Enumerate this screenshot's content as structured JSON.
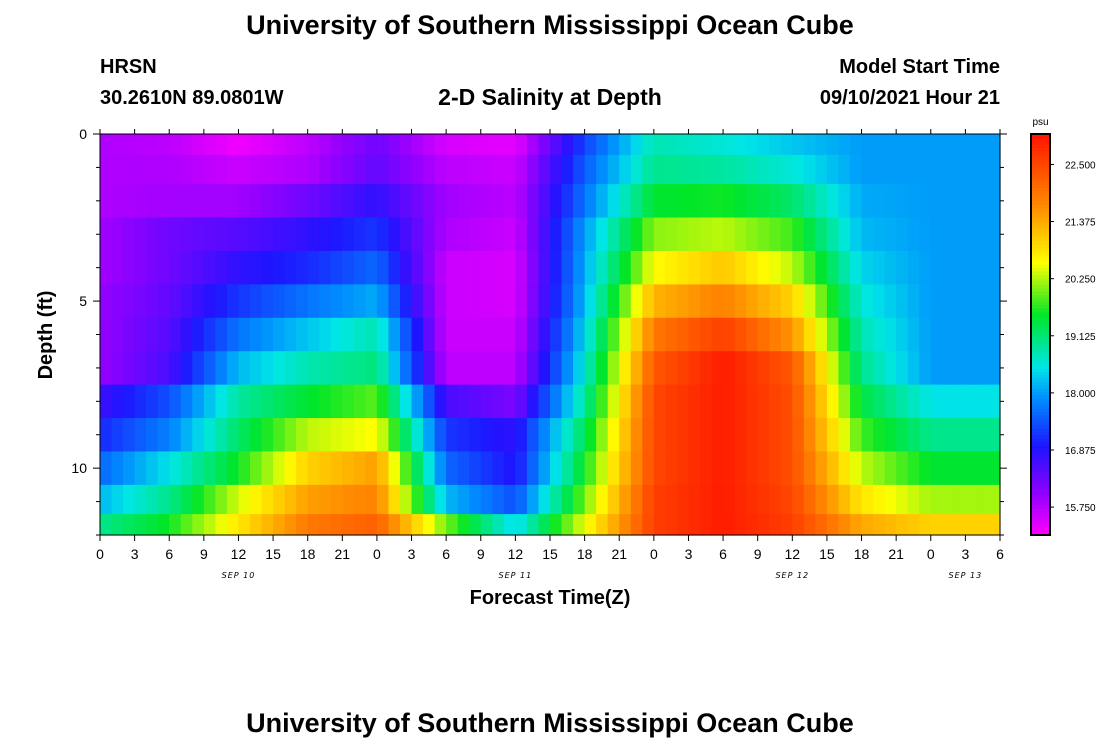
{
  "header": {
    "title_top": "University of Southern Mississippi Ocean Cube",
    "title_bottom": "University of Southern Mississippi Ocean Cube",
    "station": "HRSN",
    "coords": "30.2610N  89.0801W",
    "model_label": "Model Start Time",
    "model_time": "09/10/2021 Hour 21",
    "subtitle": "2-D Salinity at Depth"
  },
  "chart_data": {
    "type": "heatmap",
    "title": "2-D Salinity at Depth",
    "xlabel": "Forecast Time(Z)",
    "ylabel": "Depth (ft)",
    "x_tick_labels": [
      "0",
      "3",
      "6",
      "9",
      "12",
      "15",
      "18",
      "21",
      "0",
      "3",
      "6",
      "9",
      "12",
      "15",
      "18",
      "21",
      "0",
      "3",
      "6",
      "9",
      "12",
      "15",
      "18",
      "21",
      "0",
      "3",
      "6"
    ],
    "day_labels": [
      {
        "text": "SEP 10",
        "at_tick": 4
      },
      {
        "text": "SEP 11",
        "at_tick": 12
      },
      {
        "text": "SEP 12",
        "at_tick": 20
      },
      {
        "text": "SEP 13",
        "at_tick": 25
      }
    ],
    "hours_total": 78,
    "y_ticks": [
      0,
      5,
      10
    ],
    "y_tick_labels": [
      "0",
      "5",
      "10"
    ],
    "ylim": [
      0,
      12
    ],
    "y_inverted": true,
    "colorbar": {
      "unit": "psu",
      "min": 15.2,
      "max": 23.1,
      "tick_values": [
        15.75,
        16.875,
        18.0,
        19.125,
        20.25,
        21.375,
        22.5
      ],
      "tick_labels": [
        "15.750",
        "16.875",
        "18.000",
        "19.125",
        "20.250",
        "21.375",
        "22.500"
      ]
    },
    "depth_layers": [
      0.25,
      1,
      2,
      3,
      4,
      5,
      6,
      7,
      8,
      9,
      10,
      11,
      11.75
    ],
    "time_keypoints": [
      0,
      6,
      12,
      18,
      24,
      30,
      36,
      42,
      48,
      54,
      60,
      66,
      72,
      78
    ],
    "salinity_grid": [
      [
        15.8,
        15.7,
        15.3,
        15.7,
        16.3,
        15.5,
        15.4,
        17.3,
        18.8,
        18.6,
        18.3,
        18.0,
        18.0,
        18.0
      ],
      [
        15.8,
        15.8,
        15.6,
        15.8,
        16.4,
        15.7,
        15.6,
        17.5,
        19.0,
        18.9,
        18.6,
        18.0,
        18.0,
        18.0
      ],
      [
        15.8,
        15.9,
        15.9,
        16.3,
        16.8,
        15.9,
        15.7,
        17.7,
        19.5,
        19.6,
        19.2,
        18.1,
        18.0,
        18.0
      ],
      [
        15.9,
        16.3,
        16.5,
        16.8,
        17.2,
        15.8,
        15.6,
        18.0,
        20.1,
        20.3,
        19.8,
        18.2,
        18.0,
        18.0
      ],
      [
        15.9,
        16.3,
        16.8,
        17.1,
        17.6,
        15.6,
        15.5,
        18.1,
        20.6,
        21.1,
        20.3,
        18.4,
        18.0,
        18.0
      ],
      [
        16.0,
        16.4,
        17.2,
        17.7,
        18.1,
        15.6,
        15.5,
        18.2,
        21.3,
        21.8,
        21.0,
        18.6,
        18.0,
        18.0
      ],
      [
        16.0,
        16.5,
        17.7,
        18.3,
        18.8,
        15.6,
        15.6,
        18.4,
        21.9,
        22.6,
        21.6,
        18.8,
        18.0,
        18.0
      ],
      [
        16.0,
        16.6,
        18.2,
        18.8,
        19.1,
        15.7,
        15.7,
        18.6,
        22.3,
        23.0,
        22.3,
        19.0,
        18.0,
        18.0
      ],
      [
        16.7,
        17.4,
        18.9,
        19.5,
        19.9,
        16.6,
        16.2,
        18.9,
        22.5,
        23.0,
        22.4,
        19.4,
        18.5,
        18.5
      ],
      [
        17.1,
        17.8,
        19.2,
        20.3,
        20.6,
        17.2,
        16.8,
        19.3,
        22.5,
        23.0,
        22.4,
        19.8,
        19.0,
        19.0
      ],
      [
        17.6,
        18.5,
        19.6,
        21.0,
        21.5,
        17.6,
        16.9,
        19.6,
        22.5,
        23.0,
        22.4,
        20.3,
        19.5,
        19.5
      ],
      [
        18.2,
        19.0,
        20.4,
        21.5,
        21.8,
        18.2,
        17.4,
        20.0,
        22.6,
        23.0,
        22.5,
        20.8,
        20.2,
        20.2
      ],
      [
        19.0,
        19.6,
        20.8,
        21.9,
        22.2,
        20.0,
        18.4,
        20.5,
        22.6,
        23.0,
        22.6,
        21.4,
        21.0,
        21.0
      ]
    ]
  }
}
